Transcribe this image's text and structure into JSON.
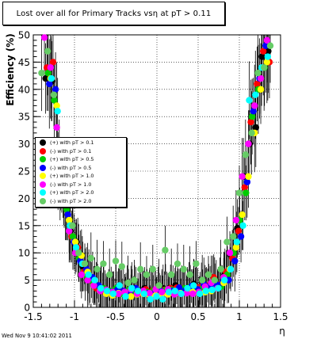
{
  "chart_data": {
    "type": "scatter",
    "title": "Lost over all for Primary Tracks vsη at pT > 0.11",
    "xlabel": "η",
    "ylabel": "Efficiency (%)",
    "xlim": [
      -1.5,
      1.5
    ],
    "ylim": [
      0,
      50
    ],
    "x_ticks": [
      "-1.5",
      "-1",
      "-0.5",
      "0",
      "0.5",
      "1",
      "1.5"
    ],
    "y_ticks": [
      "0",
      "5",
      "10",
      "15",
      "20",
      "25",
      "30",
      "35",
      "40",
      "45",
      "50"
    ],
    "grid": true,
    "legend_position": "center-left",
    "series": [
      {
        "name": "(+) with pT > 0.1",
        "color": "#000000",
        "x": [
          -1.35,
          -1.275,
          -1.2,
          -1.125,
          -1.05,
          -0.975,
          -0.9,
          -0.825,
          -0.75,
          -0.675,
          -0.6,
          -0.525,
          -0.45,
          -0.375,
          -0.3,
          -0.225,
          -0.15,
          -0.075,
          0,
          0.075,
          0.15,
          0.225,
          0.3,
          0.375,
          0.45,
          0.525,
          0.6,
          0.675,
          0.75,
          0.825,
          0.9,
          0.975,
          1.05,
          1.125,
          1.2,
          1.275,
          1.35
        ],
        "y": [
          42,
          41.5,
          25,
          20,
          14,
          12,
          7.5,
          5.5,
          4,
          3.2,
          3,
          2.8,
          3.2,
          3,
          2.8,
          2.5,
          3.5,
          3,
          2.5,
          3.5,
          3.5,
          4,
          3,
          3.5,
          4.3,
          3.5,
          3.5,
          4.5,
          3.5,
          6,
          9.5,
          14.5,
          24,
          30,
          33,
          46,
          47
        ]
      },
      {
        "name": "(-) with pT > 0.1",
        "color": "#ff0000",
        "x": [
          -1.335,
          -1.26,
          -1.185,
          -1.11,
          -1.035,
          -0.96,
          -0.885,
          -0.81,
          -0.735,
          -0.66,
          -0.585,
          -0.51,
          -0.435,
          -0.36,
          -0.285,
          -0.21,
          -0.135,
          -0.06,
          0.015,
          0.09,
          0.165,
          0.24,
          0.315,
          0.39,
          0.465,
          0.54,
          0.615,
          0.69,
          0.765,
          0.84,
          0.915,
          0.99,
          1.065,
          1.14,
          1.215,
          1.29,
          1.365
        ],
        "y": [
          44,
          45,
          28,
          19,
          13,
          11,
          6.5,
          5,
          3.5,
          3,
          2.8,
          2.5,
          3,
          3,
          2.5,
          2.6,
          3.3,
          3,
          2.8,
          3.2,
          3.5,
          3.6,
          3.5,
          3.5,
          3.8,
          3.8,
          4,
          5.5,
          4.2,
          6.5,
          9,
          14,
          22,
          34,
          41,
          47,
          45
        ]
      },
      {
        "name": "(+) with pT > 0.5",
        "color": "#00cc00",
        "x": [
          -1.32,
          -1.245,
          -1.17,
          -1.095,
          -1.02,
          -0.945,
          -0.87,
          -0.795,
          -0.72,
          -0.645,
          -0.57,
          -0.495,
          -0.42,
          -0.345,
          -0.27,
          -0.195,
          -0.12,
          -0.045,
          0.03,
          0.105,
          0.18,
          0.255,
          0.33,
          0.405,
          0.48,
          0.555,
          0.63,
          0.705,
          0.78,
          0.855,
          0.93,
          1.005,
          1.08,
          1.155,
          1.23,
          1.305
        ],
        "y": [
          43,
          38,
          23,
          18,
          13,
          9,
          6,
          5,
          4,
          3.5,
          3,
          3.5,
          2.5,
          3.2,
          3,
          2.8,
          2.8,
          3,
          2.6,
          3.2,
          3.2,
          2.9,
          3.5,
          3.8,
          3,
          3.5,
          3.6,
          4.8,
          3.8,
          6,
          10,
          16,
          21,
          35,
          40,
          44
        ]
      },
      {
        "name": "(-) with pT > 0.5",
        "color": "#0000ff",
        "x": [
          -1.305,
          -1.23,
          -1.155,
          -1.08,
          -1.005,
          -0.93,
          -0.855,
          -0.78,
          -0.705,
          -0.63,
          -0.555,
          -0.48,
          -0.405,
          -0.33,
          -0.255,
          -0.18,
          -0.105,
          -0.03,
          0.045,
          0.12,
          0.195,
          0.27,
          0.345,
          0.42,
          0.495,
          0.57,
          0.645,
          0.72,
          0.795,
          0.87,
          0.945,
          1.02,
          1.095,
          1.17,
          1.245,
          1.32
        ],
        "y": [
          41,
          40,
          24,
          17,
          12,
          8.5,
          7,
          5.5,
          4,
          3,
          2.8,
          3.2,
          3,
          2.5,
          3.5,
          2.7,
          2.6,
          2.6,
          3,
          2.8,
          3,
          3.6,
          3.1,
          3.9,
          3.3,
          4.2,
          4,
          4.2,
          4.5,
          5,
          8.5,
          13,
          23,
          36,
          42,
          48
        ]
      },
      {
        "name": "(+) with pT > 1.0",
        "color": "#ffff00",
        "x": [
          -1.29,
          -1.215,
          -1.14,
          -1.065,
          -0.99,
          -0.915,
          -0.84,
          -0.765,
          -0.69,
          -0.615,
          -0.54,
          -0.465,
          -0.39,
          -0.315,
          -0.24,
          -0.165,
          -0.09,
          -0.015,
          0.06,
          0.135,
          0.21,
          0.285,
          0.36,
          0.435,
          0.51,
          0.585,
          0.66,
          0.735,
          0.81,
          0.885,
          0.96,
          1.035,
          1.11,
          1.185,
          1.26,
          1.335
        ],
        "y": [
          42,
          37,
          22,
          16,
          12,
          9.5,
          6.5,
          4,
          3,
          2.5,
          2.2,
          2.6,
          2.8,
          2,
          2.4,
          2.5,
          2.3,
          2.2,
          2.5,
          2.4,
          2.5,
          2.6,
          2.6,
          2.8,
          2.7,
          2.8,
          3,
          3.5,
          4.5,
          7,
          11,
          17,
          24,
          32,
          40,
          45
        ]
      },
      {
        "name": "(-) with pT > 1.0",
        "color": "#ff00ff",
        "x": [
          -1.365,
          -1.29,
          -1.215,
          -1.14,
          -1.065,
          -0.99,
          -0.915,
          -0.84,
          -0.765,
          -0.69,
          -0.615,
          -0.54,
          -0.465,
          -0.39,
          -0.315,
          -0.24,
          -0.165,
          -0.09,
          -0.015,
          0.06,
          0.135,
          0.21,
          0.285,
          0.36,
          0.435,
          0.51,
          0.585,
          0.66,
          0.735,
          0.81,
          0.885,
          0.96,
          1.035,
          1.11,
          1.185,
          1.26,
          1.335
        ],
        "y": [
          49.5,
          44,
          33,
          25,
          14,
          10,
          6,
          5,
          4,
          3,
          3.2,
          2.8,
          2.5,
          2.8,
          3.3,
          2.5,
          3,
          2.6,
          3.3,
          2.8,
          3.3,
          2.4,
          2.5,
          2.6,
          2.5,
          2.8,
          3.8,
          4.5,
          3.5,
          5.5,
          10,
          16,
          24,
          30,
          37,
          42,
          49
        ]
      },
      {
        "name": "(+) with pT > 2.0",
        "color": "#00ffff",
        "x": [
          -1.28,
          -1.205,
          -1.13,
          -1.055,
          -0.98,
          -0.905,
          -0.83,
          -0.755,
          -0.68,
          -0.605,
          -0.53,
          -0.455,
          -0.38,
          -0.305,
          -0.23,
          -0.155,
          -0.08,
          -0.005,
          0.07,
          0.145,
          0.22,
          0.295,
          0.37,
          0.445,
          0.52,
          0.595,
          0.67,
          0.745,
          0.82,
          0.895,
          0.97,
          1.045,
          1.12,
          1.195,
          1.27,
          1.345
        ],
        "y": [
          42,
          36,
          21,
          15,
          11,
          8,
          6,
          5,
          3.5,
          3,
          2.5,
          4,
          2,
          3.5,
          3,
          2.5,
          1.5,
          2,
          1.5,
          2.8,
          3,
          2.5,
          3.5,
          4,
          2.5,
          3,
          3.2,
          3.5,
          5,
          7,
          12,
          15,
          38,
          39,
          44,
          46
        ]
      },
      {
        "name": "(-) with pT > 2.0",
        "color": "#66cc66",
        "x": [
          -1.4,
          -1.325,
          -1.25,
          -1.175,
          -1.1,
          -1.025,
          -0.95,
          -0.875,
          -0.8,
          -0.725,
          -0.65,
          -0.575,
          -0.5,
          -0.425,
          -0.35,
          -0.275,
          -0.2,
          -0.125,
          -0.05,
          0.025,
          0.1,
          0.175,
          0.25,
          0.325,
          0.4,
          0.475,
          0.55,
          0.625,
          0.7,
          0.775,
          0.85,
          0.925,
          1,
          1.075,
          1.15,
          1.225,
          1.3,
          1.375
        ],
        "y": [
          43,
          47,
          39,
          22,
          19,
          15,
          10,
          8,
          9,
          7,
          8,
          6,
          8.5,
          7.5,
          4.5,
          5,
          7,
          6,
          7,
          4,
          10.5,
          6,
          8,
          7,
          6,
          8,
          5,
          6,
          5,
          7,
          12,
          13,
          21,
          28,
          32,
          43,
          44,
          48
        ]
      }
    ]
  },
  "legend_entries": [
    {
      "label": "(+) with pT > 0.1",
      "color": "#000000"
    },
    {
      "label": "(-) with pT > 0.1",
      "color": "#ff0000"
    },
    {
      "label": "(+) with pT > 0.5",
      "color": "#00cc00"
    },
    {
      "label": "(-) with pT > 0.5",
      "color": "#0000ff"
    },
    {
      "label": "(+) with pT > 1.0",
      "color": "#ffff00"
    },
    {
      "label": "(-) with pT > 1.0",
      "color": "#ff00ff"
    },
    {
      "label": "(+) with pT > 2.0",
      "color": "#00ffff"
    },
    {
      "label": "(-) with pT > 2.0",
      "color": "#66cc66"
    }
  ],
  "footer_timestamp": "Wed Nov  9 10:41:02 2011"
}
